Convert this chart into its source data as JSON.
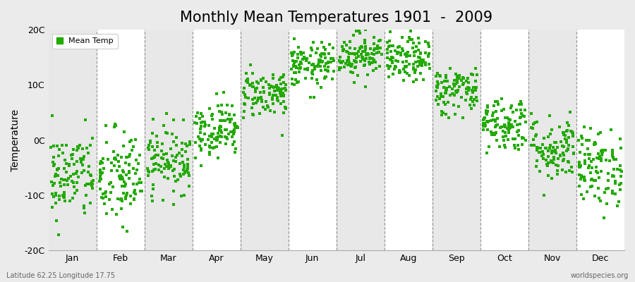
{
  "title": "Monthly Mean Temperatures 1901  -  2009",
  "ylabel": "Temperature",
  "footnote_left": "Latitude 62.25 Longitude 17.75",
  "footnote_right": "worldspecies.org",
  "ylim": [
    -20,
    20
  ],
  "yticks": [
    -20,
    -10,
    0,
    10,
    20
  ],
  "ytick_labels": [
    "-20C",
    "-10C",
    "0C",
    "10C",
    "20C"
  ],
  "months": [
    "Jan",
    "Feb",
    "Mar",
    "Apr",
    "May",
    "Jun",
    "Jul",
    "Aug",
    "Sep",
    "Oct",
    "Nov",
    "Dec"
  ],
  "dot_color": "#22AA00",
  "dot_size": 5,
  "background_color": "#EBEBEB",
  "plot_bg_white": "#FFFFFF",
  "plot_bg_gray": "#E8E8E8",
  "title_fontsize": 15,
  "legend_label": "Mean Temp",
  "n_years": 109,
  "seed": 42,
  "monthly_means": [
    -6.5,
    -7.0,
    -3.5,
    2.0,
    8.5,
    13.5,
    15.5,
    14.5,
    9.0,
    3.0,
    -1.5,
    -5.0
  ],
  "monthly_stds": [
    4.0,
    4.5,
    3.0,
    2.5,
    2.2,
    2.0,
    2.0,
    2.0,
    2.2,
    2.5,
    3.0,
    3.5
  ]
}
